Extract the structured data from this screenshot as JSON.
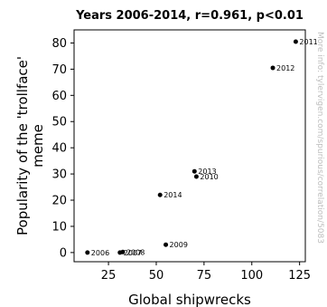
{
  "chart_data": {
    "type": "scatter",
    "title": "Years 2006-2014, r=0.961, p<0.01",
    "xlabel": "Global shipwrecks",
    "ylabel": "Popularity of the 'trollface' meme",
    "xlim": [
      7,
      128
    ],
    "ylim": [
      -3.5,
      85
    ],
    "xticks": [
      25,
      50,
      75,
      100,
      125
    ],
    "yticks": [
      0,
      10,
      20,
      30,
      40,
      50,
      60,
      70,
      80
    ],
    "grid": false,
    "points": [
      {
        "x": 14,
        "y": 0,
        "label": "2006"
      },
      {
        "x": 31,
        "y": 0,
        "label": "2007"
      },
      {
        "x": 32.5,
        "y": 0.2,
        "label": "2008"
      },
      {
        "x": 55,
        "y": 3,
        "label": "2009"
      },
      {
        "x": 71,
        "y": 29,
        "label": "2010"
      },
      {
        "x": 111,
        "y": 70.5,
        "label": "2012"
      },
      {
        "x": 123,
        "y": 80.5,
        "label": "2011"
      },
      {
        "x": 70,
        "y": 31,
        "label": "2013"
      },
      {
        "x": 52,
        "y": 22,
        "label": "2014"
      }
    ]
  },
  "watermark": "More info: tylervigen.com/spurious/correlation/5083"
}
